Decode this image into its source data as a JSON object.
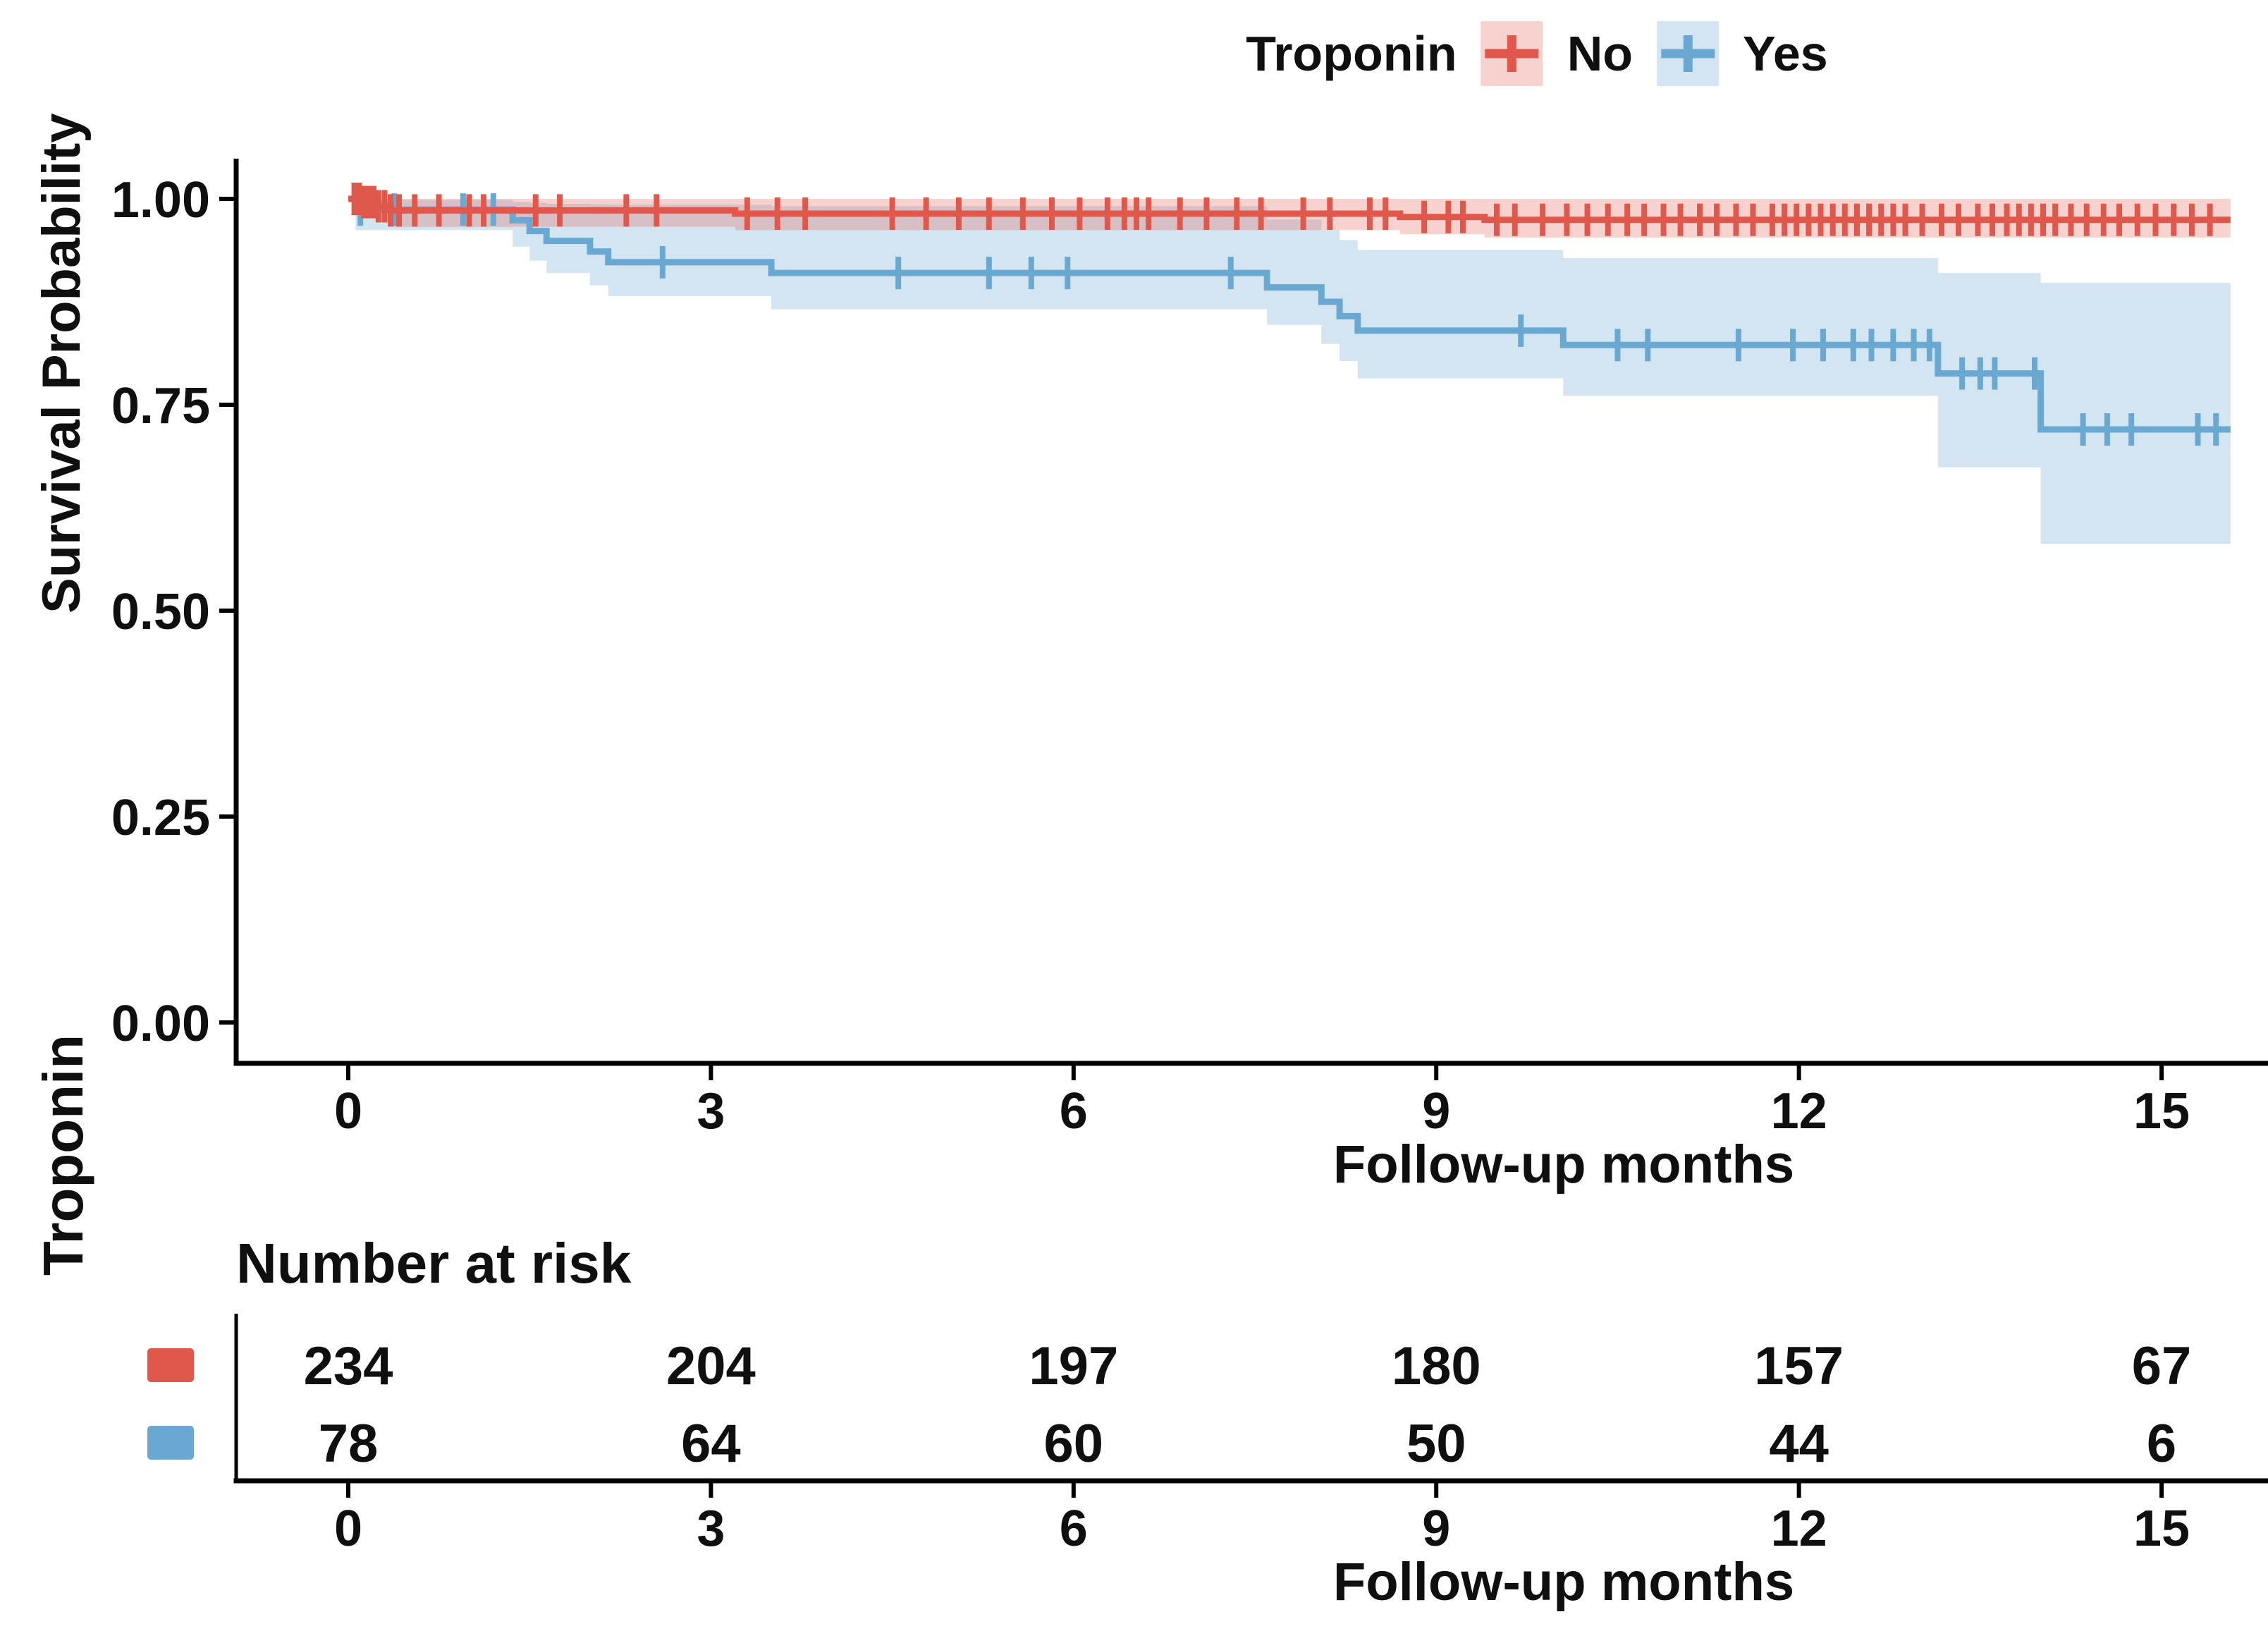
{
  "chart_data": {
    "type": "line",
    "subtype": "kaplan-meier-survival",
    "title": "",
    "xlabel": "Follow-up months",
    "ylabel": "Survival Probability",
    "xticks": [
      0,
      3,
      6,
      9,
      12,
      15
    ],
    "yticks": [
      0,
      0.25,
      0.5,
      0.75,
      1
    ],
    "ytick_labels": [
      "0.00",
      "0.25",
      "0.50",
      "0.75",
      "1.00"
    ],
    "xlim": [
      -0.93,
      15.9
    ],
    "ylim": [
      0,
      1.05
    ],
    "xmax_data": 15.57,
    "grid": "off",
    "legend": {
      "title": "Troponin",
      "position": "top",
      "entries": [
        {
          "label": "No",
          "color": "#E0584B",
          "fill": "rgba(224,88,75,0.27)"
        },
        {
          "label": "Yes",
          "color": "#69A8D0",
          "fill": "rgba(109,169,208,0.30)"
        }
      ]
    },
    "series": [
      {
        "name": "Yes",
        "color": "#69A8D0",
        "ci_fill": "rgba(109,169,208,0.30)",
        "steps": [
          [
            0,
            1
          ],
          [
            0.06,
            0.987
          ],
          [
            1.36,
            0.974
          ],
          [
            1.5,
            0.961
          ],
          [
            1.64,
            0.949
          ],
          [
            2.0,
            0.936
          ],
          [
            2.15,
            0.923
          ],
          [
            3.5,
            0.91
          ],
          [
            7.6,
            0.8925
          ],
          [
            8.05,
            0.875
          ],
          [
            8.2,
            0.8575
          ],
          [
            8.35,
            0.84
          ],
          [
            10.05,
            0.8225
          ],
          [
            13.15,
            0.788
          ],
          [
            14.0,
            0.72
          ]
        ],
        "ci_upper": [
          [
            0,
            1
          ],
          [
            0.06,
            0.999
          ],
          [
            1.36,
            0.996
          ],
          [
            1.5,
            0.995
          ],
          [
            1.64,
            0.994
          ],
          [
            2.0,
            0.9935
          ],
          [
            2.15,
            0.993
          ],
          [
            3.5,
            0.991
          ],
          [
            7.6,
            0.975
          ],
          [
            8.05,
            0.962
          ],
          [
            8.2,
            0.95
          ],
          [
            8.35,
            0.938
          ],
          [
            10.05,
            0.928
          ],
          [
            13.15,
            0.91
          ],
          [
            14.0,
            0.898
          ]
        ],
        "ci_lower": [
          [
            0,
            1
          ],
          [
            0.06,
            0.962
          ],
          [
            1.36,
            0.942
          ],
          [
            1.5,
            0.925
          ],
          [
            1.64,
            0.91
          ],
          [
            2.0,
            0.895
          ],
          [
            2.15,
            0.882
          ],
          [
            3.5,
            0.866
          ],
          [
            7.6,
            0.847
          ],
          [
            8.05,
            0.824
          ],
          [
            8.2,
            0.803
          ],
          [
            8.35,
            0.782
          ],
          [
            10.05,
            0.761
          ],
          [
            13.15,
            0.674
          ],
          [
            14.0,
            0.581
          ]
        ],
        "censors": [
          0.1,
          0.38,
          0.95,
          1.2,
          2.6,
          4.55,
          5.3,
          5.65,
          5.95,
          7.3,
          9.7,
          10.5,
          10.75,
          11.5,
          11.95,
          12.2,
          12.45,
          12.6,
          12.78,
          12.95,
          13.08,
          13.35,
          13.5,
          13.62,
          13.95,
          14.35,
          14.55,
          14.75,
          15.3,
          15.45
        ]
      },
      {
        "name": "No",
        "color": "#E0584B",
        "ci_fill": "rgba(224,88,75,0.27)",
        "steps": [
          [
            0,
            1
          ],
          [
            0.1,
            0.996
          ],
          [
            0.22,
            0.991
          ],
          [
            0.35,
            0.986
          ],
          [
            3.2,
            0.982
          ],
          [
            8.7,
            0.978
          ],
          [
            9.4,
            0.9745
          ]
        ],
        "ci_upper": [
          [
            0,
            1
          ],
          [
            0.1,
            1
          ],
          [
            0.22,
            1
          ],
          [
            0.35,
            1
          ],
          [
            3.2,
            1
          ],
          [
            8.7,
            1
          ],
          [
            9.4,
            1
          ]
        ],
        "ci_lower": [
          [
            0,
            1
          ],
          [
            0.1,
            0.993
          ],
          [
            0.22,
            0.986
          ],
          [
            0.35,
            0.966
          ],
          [
            3.2,
            0.962
          ],
          [
            8.7,
            0.957
          ],
          [
            9.4,
            0.953
          ]
        ],
        "censors": [
          0.05,
          0.09,
          0.13,
          0.17,
          0.21,
          0.25,
          0.3,
          0.35,
          0.42,
          0.55,
          0.75,
          1.0,
          1.12,
          1.55,
          1.75,
          2.3,
          2.55,
          3.3,
          3.55,
          3.78,
          4.5,
          4.78,
          5.05,
          5.3,
          5.58,
          5.82,
          6.05,
          6.28,
          6.42,
          6.52,
          6.62,
          6.88,
          7.1,
          7.35,
          7.55,
          7.9,
          8.12,
          8.45,
          8.58,
          8.9,
          9.1,
          9.22,
          9.5,
          9.65,
          9.88,
          10.08,
          10.25,
          10.42,
          10.58,
          10.72,
          10.88,
          11.02,
          11.18,
          11.32,
          11.48,
          11.62,
          11.78,
          11.88,
          11.98,
          12.08,
          12.18,
          12.28,
          12.38,
          12.48,
          12.58,
          12.68,
          12.78,
          12.88,
          13.02,
          13.18,
          13.32,
          13.48,
          13.6,
          13.72,
          13.82,
          13.92,
          14.02,
          14.12,
          14.25,
          14.38,
          14.52,
          14.65,
          14.8,
          14.95,
          15.1,
          15.25,
          15.4
        ]
      }
    ],
    "risk_table": {
      "title": "Number at risk",
      "group_label": "Troponin",
      "xlabel": "Follow-up months",
      "times": [
        0,
        3,
        6,
        9,
        12,
        15
      ],
      "rows": [
        {
          "name": "No",
          "color": "#E0584B",
          "values": [
            234,
            204,
            197,
            180,
            157,
            67
          ]
        },
        {
          "name": "Yes",
          "color": "#69A8D0",
          "values": [
            78,
            64,
            60,
            50,
            44,
            6
          ]
        }
      ]
    }
  }
}
